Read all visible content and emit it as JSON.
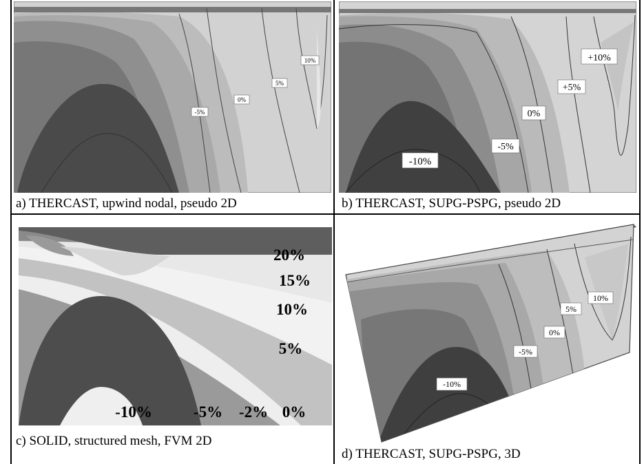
{
  "panels": [
    {
      "id": "a",
      "caption": "a) THERCAST, upwind nodal, pseudo 2D",
      "contour_labels": [
        "-5%",
        "0%",
        "5%",
        "10%"
      ]
    },
    {
      "id": "b",
      "caption": "b) THERCAST, SUPG-PSPG, pseudo 2D",
      "contour_labels": [
        "-10%",
        "-5%",
        "0%",
        "+5%",
        "+10%"
      ]
    },
    {
      "id": "c",
      "caption": "c) SOLID, structured mesh, FVM 2D",
      "contour_labels": [
        "20%",
        "15%",
        "10%",
        "5%",
        "-10%",
        "-5%",
        "-2%",
        "0%"
      ]
    },
    {
      "id": "d",
      "caption": "d) THERCAST, SUPG-PSPG, 3D",
      "contour_labels": [
        "-10%",
        "-5%",
        "0%",
        "5%",
        "10%"
      ]
    }
  ]
}
